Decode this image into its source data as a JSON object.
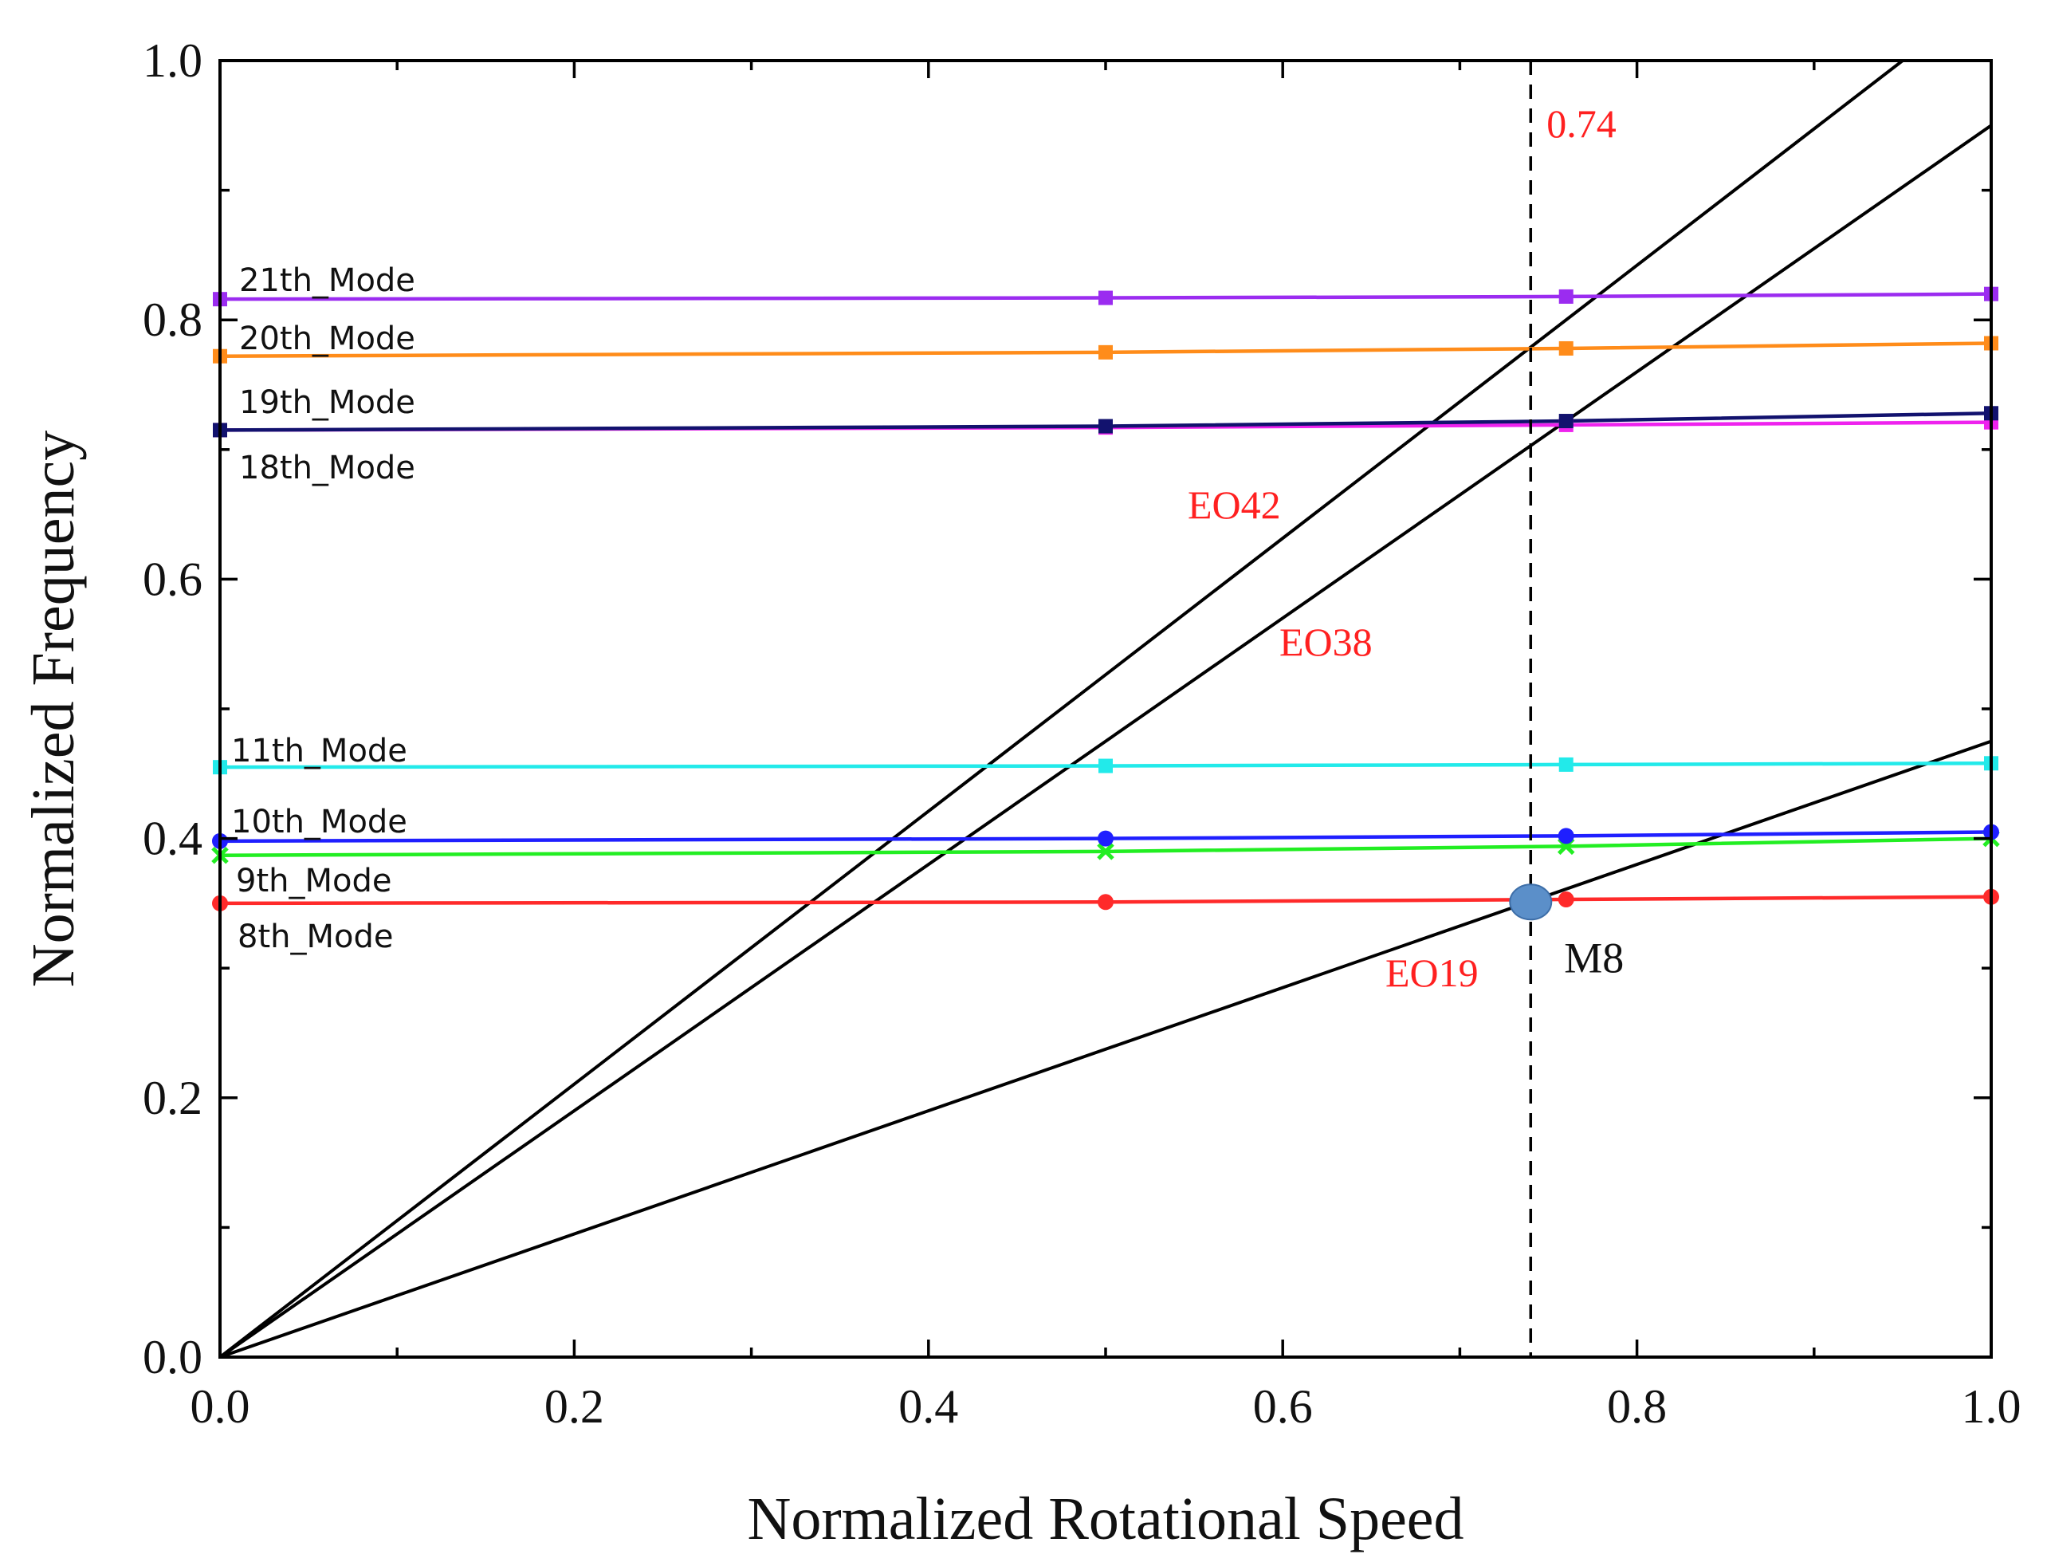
{
  "chart_data": {
    "type": "line",
    "title": "",
    "xlabel": "Normalized Rotational Speed",
    "ylabel": "Normalized Frequency",
    "xlim": [
      0,
      1.0
    ],
    "ylim": [
      0,
      1.0
    ],
    "xticks": [
      "0.0",
      "0.2",
      "0.4",
      "0.6",
      "0.8",
      "1.0"
    ],
    "yticks": [
      "0.0",
      "0.2",
      "0.4",
      "0.6",
      "0.8",
      "1.0"
    ],
    "grid": false,
    "mode_series": [
      {
        "name": "8th_Mode",
        "color": "#ff2a2a",
        "marker": "circle",
        "x": [
          0,
          0.5,
          0.76,
          1.0
        ],
        "y": [
          0.35,
          0.351,
          0.353,
          0.355
        ]
      },
      {
        "name": "9th_Mode",
        "color": "#22ee22",
        "marker": "cross",
        "x": [
          0,
          0.5,
          0.76,
          1.0
        ],
        "y": [
          0.387,
          0.39,
          0.394,
          0.4
        ]
      },
      {
        "name": "10th_Mode",
        "color": "#1f1fff",
        "marker": "circle",
        "x": [
          0,
          0.5,
          0.76,
          1.0
        ],
        "y": [
          0.398,
          0.4,
          0.402,
          0.405
        ]
      },
      {
        "name": "11th_Mode",
        "color": "#22eaea",
        "marker": "square",
        "x": [
          0,
          0.5,
          0.76,
          1.0
        ],
        "y": [
          0.455,
          0.456,
          0.457,
          0.458
        ]
      },
      {
        "name": "18th_Mode",
        "color": "#ee22ee",
        "marker": "square",
        "x": [
          0,
          0.5,
          0.76,
          1.0
        ],
        "y": [
          0.715,
          0.717,
          0.719,
          0.721
        ]
      },
      {
        "name": "19th_Mode",
        "color": "#12126e",
        "marker": "square",
        "x": [
          0,
          0.5,
          0.76,
          1.0
        ],
        "y": [
          0.715,
          0.718,
          0.722,
          0.728
        ]
      },
      {
        "name": "20th_Mode",
        "color": "#ff8c1a",
        "marker": "square",
        "x": [
          0,
          0.5,
          0.76,
          1.0
        ],
        "y": [
          0.772,
          0.775,
          0.778,
          0.782
        ]
      },
      {
        "name": "21th_Mode",
        "color": "#9b2cf0",
        "marker": "square",
        "x": [
          0,
          0.5,
          0.76,
          1.0
        ],
        "y": [
          0.816,
          0.817,
          0.818,
          0.82
        ]
      }
    ],
    "engine_orders": [
      {
        "name": "EO42",
        "x": [
          0,
          0.95
        ],
        "y": [
          0,
          1.0
        ]
      },
      {
        "name": "EO38",
        "x": [
          0,
          1.0
        ],
        "y": [
          0,
          0.95
        ]
      },
      {
        "name": "EO19",
        "x": [
          0,
          1.0
        ],
        "y": [
          0,
          0.475
        ]
      }
    ],
    "eo_label_color": "#ff2020",
    "reference_line": {
      "x": 0.74,
      "label": "0.74",
      "label_color": "#ff2020",
      "style": "dashed"
    },
    "crossing_point": {
      "name": "M8",
      "x": 0.74,
      "y": 0.351,
      "color": "#5b8fc9"
    }
  }
}
